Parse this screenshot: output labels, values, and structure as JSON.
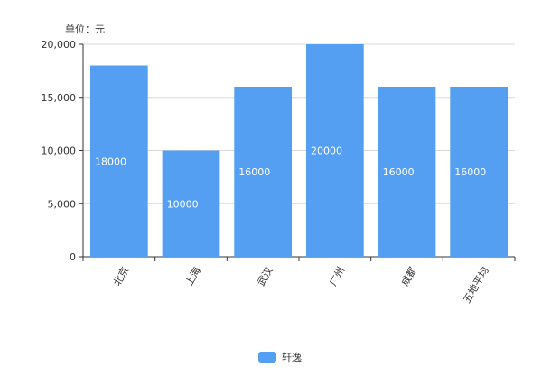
{
  "chart_data": {
    "type": "bar",
    "unit_label": "单位：元",
    "categories": [
      "北京",
      "上海",
      "武汉",
      "广州",
      "成都",
      "五地平均"
    ],
    "series": [
      {
        "name": "轩逸",
        "values": [
          18000,
          10000,
          16000,
          20000,
          16000,
          16000
        ]
      }
    ],
    "ylim": [
      0,
      20000
    ],
    "yticks": [
      "0",
      "5,000",
      "10,000",
      "15,000",
      "20,000"
    ],
    "ytick_values": [
      0,
      5000,
      10000,
      15000,
      20000
    ],
    "grid": true,
    "legend_position": "bottom",
    "colors": {
      "bar": "#559ff2",
      "grid": "#d9d9d9",
      "axis": "#333333",
      "label": "#ffffff",
      "text": "#333333"
    }
  }
}
